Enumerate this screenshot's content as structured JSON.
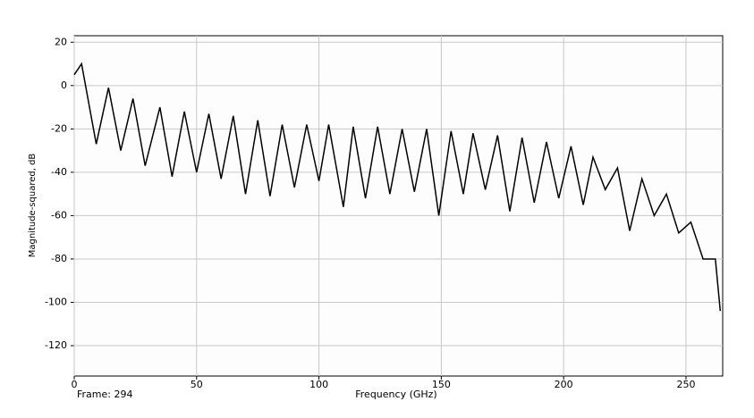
{
  "chart_data": {
    "type": "line",
    "x_label": "Frequency (GHz)",
    "y_label": "Magnitude-squared, dB",
    "annotation": "Frame: 294",
    "x": [
      0,
      3,
      9,
      14,
      19,
      24,
      29,
      35,
      40,
      45,
      50,
      55,
      60,
      65,
      70,
      75,
      80,
      85,
      90,
      95,
      100,
      104,
      110,
      114,
      119,
      124,
      129,
      134,
      139,
      144,
      149,
      154,
      159,
      163,
      168,
      173,
      178,
      183,
      188,
      193,
      198,
      203,
      208,
      212,
      217,
      222,
      227,
      232,
      237,
      242,
      247,
      252,
      257,
      262,
      264
    ],
    "values": [
      5,
      10,
      -27,
      -1,
      -30,
      -6,
      -37,
      -10,
      -42,
      -12,
      -40,
      -13,
      -43,
      -14,
      -50,
      -16,
      -51,
      -18,
      -47,
      -18,
      -44,
      -18,
      -56,
      -19,
      -52,
      -19,
      -50,
      -20,
      -49,
      -20,
      -60,
      -21,
      -50,
      -22,
      -48,
      -23,
      -58,
      -24,
      -54,
      -26,
      -52,
      -28,
      -55,
      -33,
      -48,
      -38,
      -67,
      -43,
      -60,
      -50,
      -68,
      -63,
      -80,
      -80,
      -104
    ],
    "color": "#000000",
    "xlim": [
      0,
      265
    ],
    "xticks": [
      0,
      50,
      100,
      150,
      200,
      250
    ],
    "ylim": [
      -134,
      23
    ],
    "yticks": [
      20,
      0,
      -20,
      -40,
      -60,
      -80,
      -100,
      -120
    ],
    "grid": true
  }
}
